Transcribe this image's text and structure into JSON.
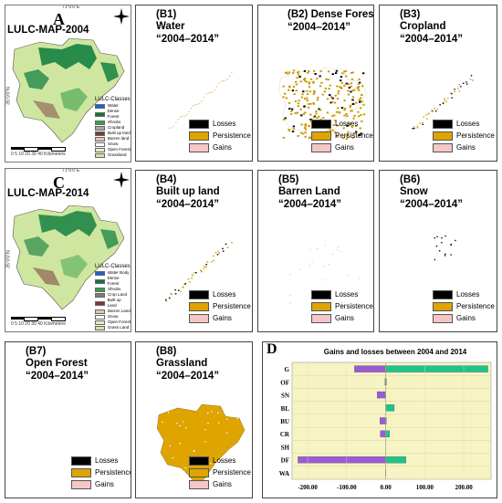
{
  "mapA": {
    "letter": "A",
    "title": "LULC-MAP-2004",
    "legend_title": "LULC-Classes",
    "top_coord": "71°0'0\"E",
    "side_coord": "35°0'0\"N",
    "legend": [
      {
        "label": "Water",
        "color": "#1f5fd6"
      },
      {
        "label": "Dense Forest",
        "color": "#0a7a3a"
      },
      {
        "label": "Shrubs",
        "color": "#3aa04a"
      },
      {
        "label": "Cropland",
        "color": "#a8a8a8"
      },
      {
        "label": "Built up land",
        "color": "#7a3a3a"
      },
      {
        "label": "Barren land",
        "color": "#d9c9b0"
      },
      {
        "label": "Snow",
        "color": "#ffffff"
      },
      {
        "label": "Open Forest",
        "color": "#f0e6c8"
      },
      {
        "label": "Grassland",
        "color": "#cfe6a0"
      }
    ],
    "scale": "0 5 10   20   30   40",
    "scale_unit": "Kilometers"
  },
  "mapC": {
    "letter": "C",
    "title": "LULC-MAP-2014",
    "legend_title": "LULC-Classes",
    "top_coord": "71°0'0\"E",
    "side_coord": "35°0'0\"N",
    "legend": [
      {
        "label": "Water Body",
        "color": "#1f5fd6"
      },
      {
        "label": "Dense Forest",
        "color": "#0a7a3a"
      },
      {
        "label": "Shrubs",
        "color": "#3aa04a"
      },
      {
        "label": "Crop Land",
        "color": "#7a7a7a"
      },
      {
        "label": "Built up Land",
        "color": "#7a3a3a"
      },
      {
        "label": "Barren Land",
        "color": "#d9c9b0"
      },
      {
        "label": "Snow",
        "color": "#ffffff"
      },
      {
        "label": "Open Forest",
        "color": "#f0e6c8"
      },
      {
        "label": "Grass Land",
        "color": "#cfe6a0"
      }
    ],
    "scale": "0 5 10   20   30   40",
    "scale_unit": "Kilometers"
  },
  "panels": [
    {
      "id": "b1",
      "code": "(B1)",
      "name": "Water",
      "years": "“2004–2014”"
    },
    {
      "id": "b2",
      "code": "(B2)",
      "name": "Dense Forest",
      "years": "“2004–2014”"
    },
    {
      "id": "b3",
      "code": "(B3)",
      "name": "Cropland",
      "years": "“2004–2014”"
    },
    {
      "id": "b4",
      "code": "(B4)",
      "name": "Built up land",
      "years": "“2004–2014”"
    },
    {
      "id": "b5",
      "code": "(B5)",
      "name": "Barren Land",
      "years": "“2004–2014”"
    },
    {
      "id": "b6",
      "code": "(B6)",
      "name": "Snow",
      "years": "“2004–2014”"
    },
    {
      "id": "b7",
      "code": "(B7)",
      "name": "Open Forest",
      "years": "“2004–2014”"
    },
    {
      "id": "b8",
      "code": "(B8)",
      "name": "Grassland",
      "years": "“2004–2014”"
    }
  ],
  "change_legend": [
    {
      "label": "Losses",
      "color": "#000000"
    },
    {
      "label": "Persistence",
      "color": "#e0a400"
    },
    {
      "label": "Gains",
      "color": "#f4c6c6"
    }
  ],
  "chart_letter": "D",
  "chart_data": {
    "type": "bar",
    "title": "Gains and losses between 2004 and 2014",
    "categories": [
      "G",
      "OF",
      "SN",
      "BL",
      "BU",
      "CR",
      "SH",
      "DF",
      "WA"
    ],
    "series": [
      {
        "values": [
          -80,
          -2,
          -22,
          1,
          -15,
          -14,
          0,
          -225,
          0
        ],
        "color": "#9b59d6"
      },
      {
        "values": [
          262,
          2,
          0,
          22,
          2,
          10,
          0,
          52,
          -1
        ],
        "color": "#1fc48a"
      }
    ],
    "xlim": [
      -240,
      270
    ],
    "xticks": [
      "-200.00",
      "-100.00",
      "0.00",
      "100.00",
      "200.00"
    ],
    "xtick_values": [
      -200,
      -100,
      0,
      100,
      200
    ]
  }
}
